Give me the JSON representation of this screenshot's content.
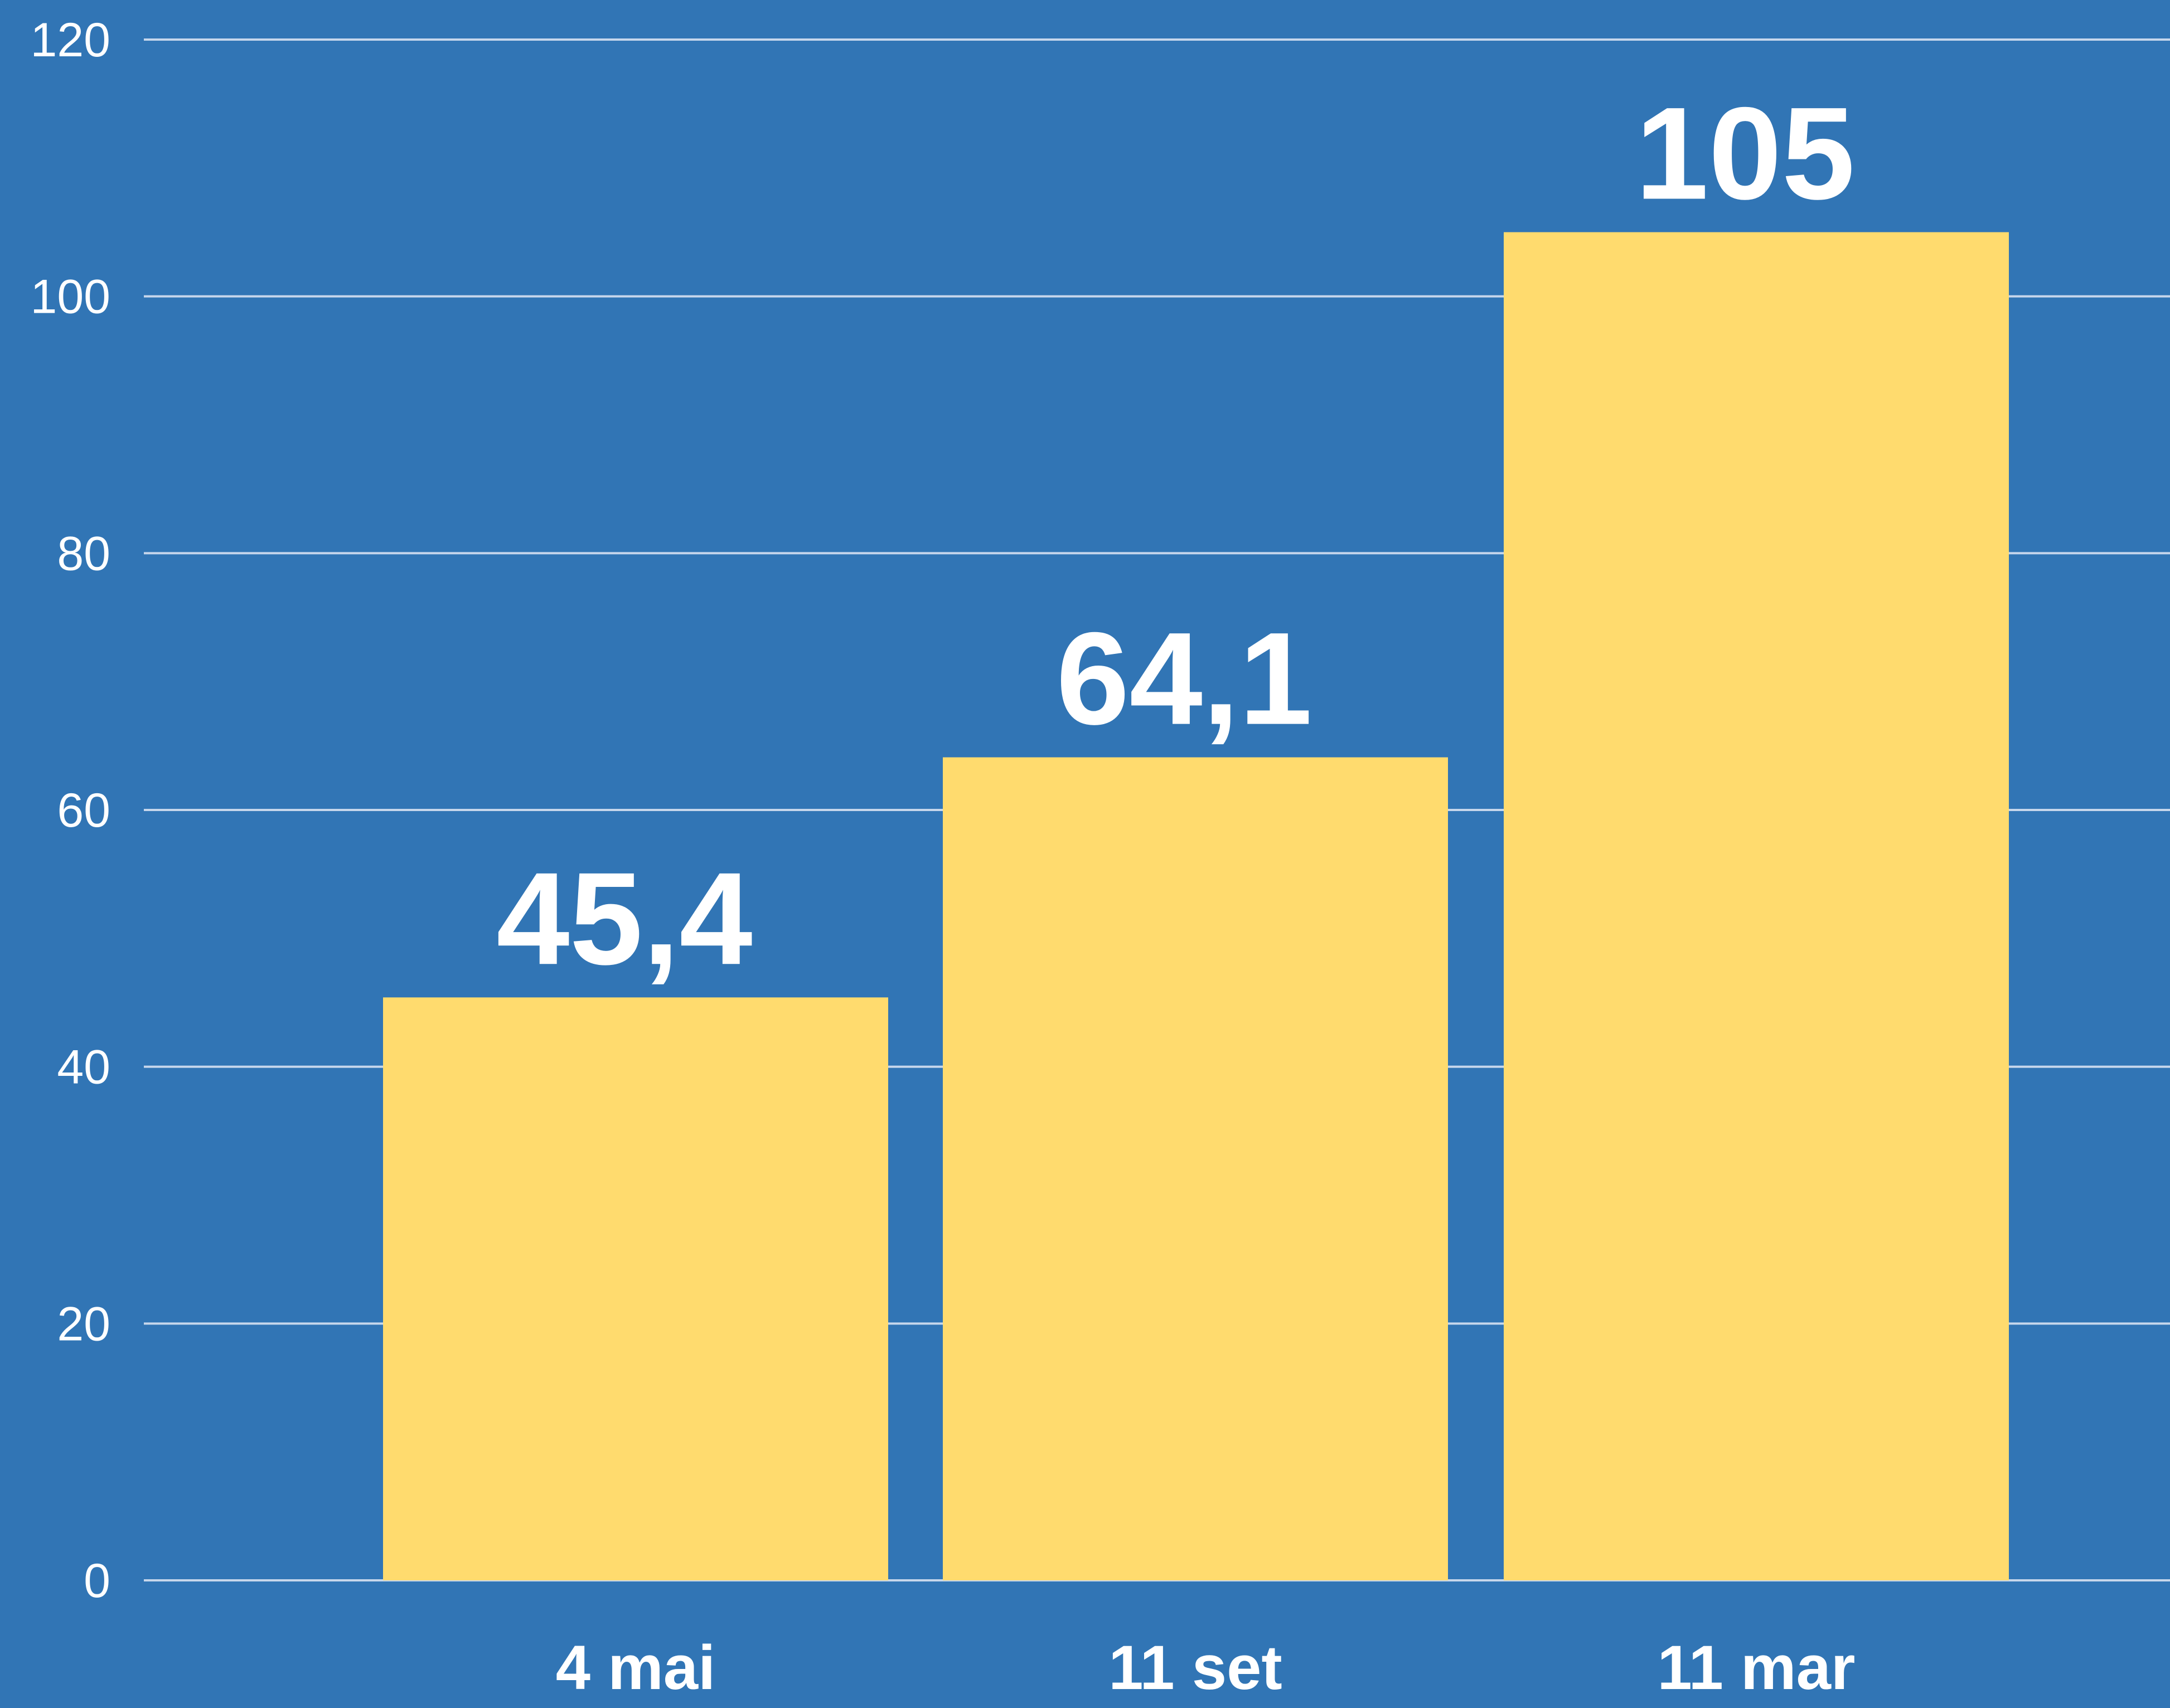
{
  "chart_data": {
    "type": "bar",
    "categories": [
      "4 mai",
      "11 set",
      "11 mar"
    ],
    "values": [
      45.4,
      64.1,
      105
    ],
    "data_labels": [
      "45,4",
      "64,1",
      "105"
    ],
    "title": "",
    "xlabel": "",
    "ylabel": "",
    "ylim": [
      0,
      120
    ],
    "yticks": [
      0,
      20,
      40,
      60,
      80,
      100,
      120
    ],
    "grid": true,
    "legend": "none",
    "colors": {
      "background": "#3175b5",
      "bar": "#ffdb6e",
      "grid": "#c7d7ec",
      "text": "#ffffff"
    }
  }
}
